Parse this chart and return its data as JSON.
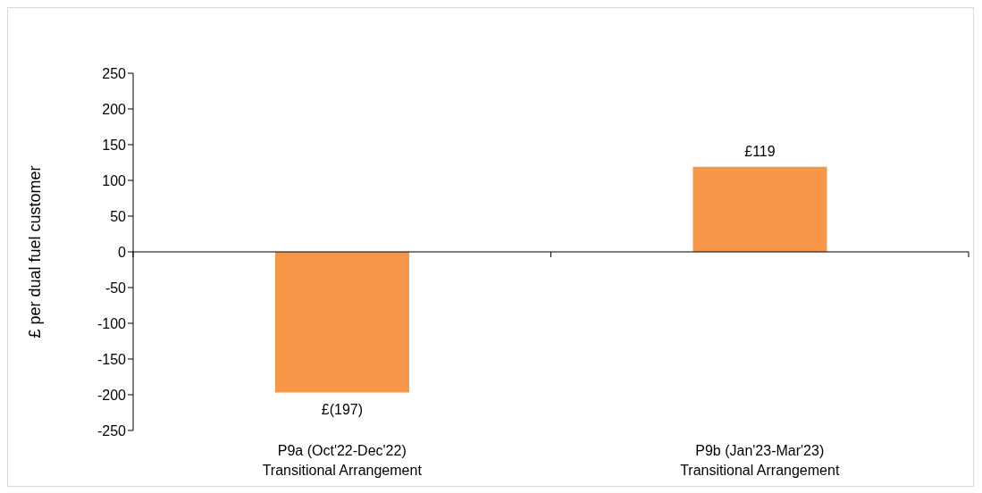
{
  "chart_data": {
    "type": "bar",
    "categories": [
      "P9a (Oct'22-Dec'22)\nTransitional Arrangement",
      "P9b (Jan'23-Mar'23)\nTransitional Arrangement"
    ],
    "values": [
      -197,
      119
    ],
    "color": "#f79646",
    "value_labels": [
      "£(197)",
      "£119"
    ],
    "ylabel": "£ per dual fuel customer",
    "ylim": [
      -250,
      250
    ],
    "yticks": [
      -250,
      -200,
      -150,
      -100,
      -50,
      0,
      50,
      100,
      150,
      200,
      250
    ],
    "legend": false
  }
}
